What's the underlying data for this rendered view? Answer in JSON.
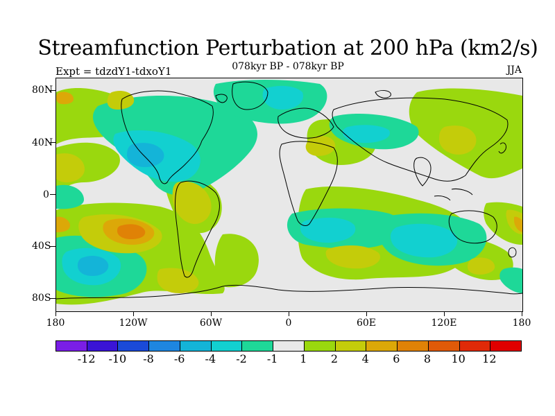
{
  "title": "Streamfunction Perturbation at 200 hPa (km2/s)",
  "subtitle": "078kyr BP - 078kyr BP",
  "experiment": "Expt = tdzdY1-tdxoY1",
  "season": "JJA",
  "lat_labels": [
    "80N",
    "40N",
    "0",
    "40S",
    "80S"
  ],
  "lon_labels": [
    "180",
    "120W",
    "60W",
    "0",
    "60E",
    "120E",
    "180"
  ],
  "colorbar_labels": [
    "-12",
    "-10",
    "-8",
    "-6",
    "-4",
    "-2",
    "-1",
    "1",
    "2",
    "4",
    "6",
    "8",
    "10",
    "12"
  ],
  "colorbar_colors": [
    "#7a1ee6",
    "#3a14d6",
    "#1a4ad8",
    "#1e86e0",
    "#14b4d8",
    "#12d0d0",
    "#1ed898",
    "#e8e8e8",
    "#9ad80e",
    "#c4cc0a",
    "#dca808",
    "#e08206",
    "#e05a08",
    "#e02a08",
    "#e00000"
  ],
  "fill_colors": {
    "background": "#e8e8e8",
    "light_green": "#9ad80e",
    "yellow": "#c4cc0a",
    "orange": "#dca808",
    "dark_orange": "#e08206",
    "mint": "#1ed898",
    "cyan": "#12d0d0",
    "blue": "#14b4d8"
  }
}
